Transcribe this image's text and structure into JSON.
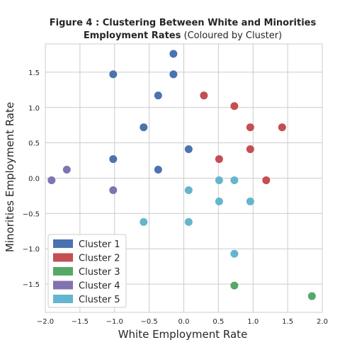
{
  "chart_data": {
    "type": "scatter",
    "title_line1": "Figure 4 : Clustering Between White and Minorities",
    "title_line2_bold": "Employment Rates",
    "title_line2_rest": " (Coloured by Cluster)",
    "xlabel": "White Employment Rate",
    "ylabel": "Minorities Employment Rate",
    "xlim": [
      -2.0,
      2.0
    ],
    "ylim": [
      -1.9,
      1.9
    ],
    "xticks": [
      -2.0,
      -1.5,
      -1.0,
      -0.5,
      0.0,
      0.5,
      1.0,
      1.5,
      2.0
    ],
    "yticks": [
      -1.5,
      -1.0,
      -0.5,
      0.0,
      0.5,
      1.0,
      1.5
    ],
    "xtick_labels": [
      "−2.0",
      "−1.5",
      "−1.0",
      "−0.5",
      "0.0",
      "0.5",
      "1.0",
      "1.5",
      "2.0"
    ],
    "ytick_labels": [
      "−1.5",
      "−1.0",
      "−0.5",
      "0.0",
      "0.5",
      "1.0",
      "1.5"
    ],
    "grid": true,
    "legend_position": "lower-left",
    "series": [
      {
        "name": "Cluster 1",
        "color": "#4c72b0",
        "points": [
          [
            -0.15,
            1.76
          ],
          [
            -1.02,
            1.47
          ],
          [
            -0.15,
            1.47
          ],
          [
            -0.37,
            1.17
          ],
          [
            -0.58,
            0.72
          ],
          [
            0.07,
            0.41
          ],
          [
            -1.02,
            0.27
          ],
          [
            -0.37,
            0.12
          ]
        ]
      },
      {
        "name": "Cluster 2",
        "color": "#c44e52",
        "points": [
          [
            0.29,
            1.17
          ],
          [
            0.73,
            1.02
          ],
          [
            0.96,
            0.72
          ],
          [
            1.42,
            0.72
          ],
          [
            0.96,
            0.41
          ],
          [
            0.51,
            0.27
          ],
          [
            1.19,
            -0.03
          ]
        ]
      },
      {
        "name": "Cluster 3",
        "color": "#55a868",
        "points": [
          [
            0.73,
            -1.52
          ],
          [
            1.85,
            -1.67
          ]
        ]
      },
      {
        "name": "Cluster 4",
        "color": "#8172b2",
        "points": [
          [
            -1.69,
            0.12
          ],
          [
            -1.91,
            -0.03
          ],
          [
            -1.02,
            -0.17
          ]
        ]
      },
      {
        "name": "Cluster 5",
        "color": "#64b5cd",
        "points": [
          [
            0.51,
            -0.03
          ],
          [
            0.73,
            -0.03
          ],
          [
            0.07,
            -0.17
          ],
          [
            0.51,
            -0.33
          ],
          [
            0.96,
            -0.33
          ],
          [
            -0.58,
            -0.62
          ],
          [
            0.07,
            -0.62
          ],
          [
            0.73,
            -1.07
          ]
        ]
      }
    ]
  }
}
